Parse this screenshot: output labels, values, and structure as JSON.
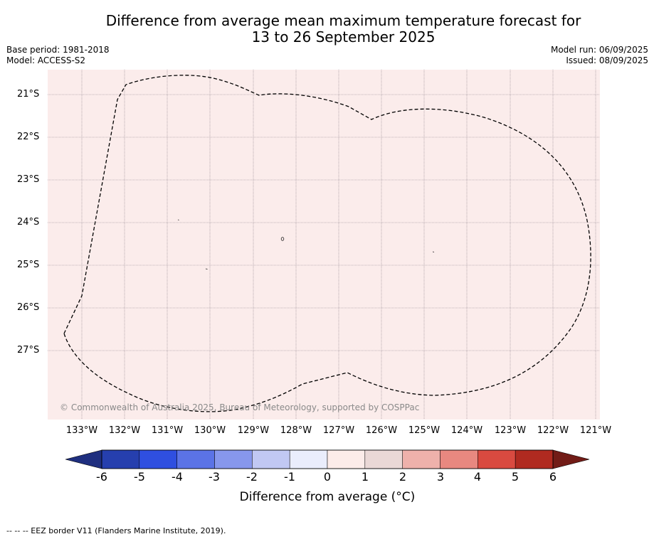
{
  "title_line1": "Difference from average mean maximum temperature forecast for",
  "title_line2": "13 to 26 September 2025",
  "base_period": "Base period: 1981-2018",
  "model": "Model: ACCESS-S2",
  "model_run": "Model run: 06/09/2025",
  "issued": "Issued: 08/09/2025",
  "map": {
    "background_color": "#fbeceb",
    "lat_labels": [
      "21°S",
      "22°S",
      "23°S",
      "24°S",
      "25°S",
      "26°S",
      "27°S"
    ],
    "lon_labels": [
      "133°W",
      "132°W",
      "131°W",
      "130°W",
      "129°W",
      "128°W",
      "127°W",
      "126°W",
      "125°W",
      "124°W",
      "123°W",
      "122°W",
      "121°W"
    ],
    "copyright": "© Commonwealth of Australia 2025, Bureau of Meteorology, supported by COSPPac",
    "eez_border_style": "dashed"
  },
  "colorbar": {
    "title": "Difference from average (°C)",
    "ticks": [
      "-6",
      "-5",
      "-4",
      "-3",
      "-2",
      "-1",
      "0",
      "1",
      "2",
      "3",
      "4",
      "5",
      "6"
    ],
    "colors": [
      "#1f2f7f",
      "#263fae",
      "#2f4fe0",
      "#5b73e6",
      "#8797ec",
      "#c1c8f3",
      "#eaedfc",
      "#fcece9",
      "#ead8d6",
      "#eeb1ab",
      "#e88880",
      "#d94a40",
      "#b02a20",
      "#721c17"
    ]
  },
  "footnote": "--  --  -- EEZ border V11 (Flanders Marine Institute, 2019)."
}
